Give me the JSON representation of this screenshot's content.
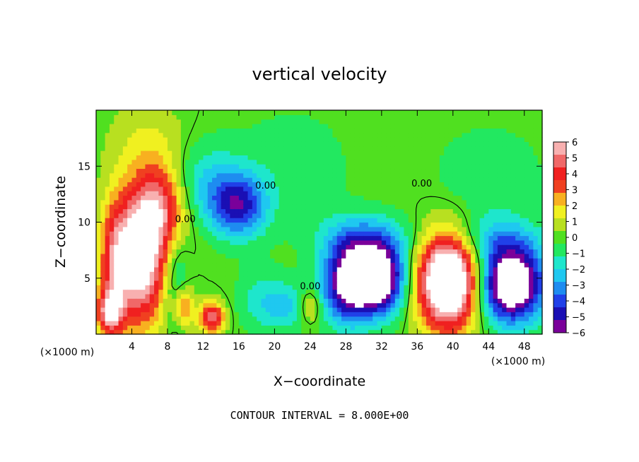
{
  "chart_data": {
    "type": "heatmap",
    "title": "vertical velocity",
    "xlabel": "X−coordinate",
    "ylabel": "Z−coordinate",
    "x_unit_left": "(×1000 m)",
    "x_unit_right": "(×1000 m)",
    "xlim": [
      0,
      50
    ],
    "ylim": [
      0,
      20
    ],
    "x_ticks": [
      4,
      8,
      12,
      16,
      20,
      24,
      28,
      32,
      36,
      40,
      44,
      48
    ],
    "y_ticks": [
      5,
      10,
      15
    ],
    "colorbar": {
      "min": -6,
      "max": 6,
      "ticks": [
        6,
        5,
        4,
        3,
        2,
        1,
        0,
        -1,
        -2,
        -3,
        -4,
        -5,
        -6
      ],
      "tick_labels": [
        "6",
        "5",
        "4",
        "3",
        "2",
        "1",
        "0",
        "−1",
        "−2",
        "−3",
        "−4",
        "−5",
        "−6"
      ],
      "colors": [
        "#7a009a",
        "#1a0fb4",
        "#2040e8",
        "#1e8cf0",
        "#1fc8f0",
        "#1ee6cc",
        "#22e860",
        "#50e020",
        "#b8e020",
        "#f0f020",
        "#f8b020",
        "#f04020",
        "#f02020",
        "#f06868",
        "#f8b0b0"
      ]
    },
    "contour_label": "0.00",
    "footer": "CONTOUR INTERVAL = 8.000E+00",
    "blobs": [
      {
        "x": 5.0,
        "z": 7.0,
        "sx": 2.0,
        "sz": 4.2,
        "a": 7.5
      },
      {
        "x": 7.5,
        "z": 11.5,
        "sx": 2.0,
        "sz": 2.6,
        "a": 4.0
      },
      {
        "x": 2.0,
        "z": 6.5,
        "sx": 1.2,
        "sz": 4.0,
        "a": 3.5
      },
      {
        "x": 1.5,
        "z": 2.0,
        "sx": 1.0,
        "sz": 1.4,
        "a": 5.0
      },
      {
        "x": 9.8,
        "z": 2.5,
        "sx": 0.8,
        "sz": 1.3,
        "a": 3.5
      },
      {
        "x": 13.0,
        "z": 1.5,
        "sx": 1.0,
        "sz": 1.0,
        "a": 5.0
      },
      {
        "x": 24.0,
        "z": 2.5,
        "sx": 0.8,
        "sz": 1.0,
        "a": 2.5
      },
      {
        "x": 16.0,
        "z": 11.5,
        "sx": 2.2,
        "sz": 2.0,
        "a": -4.5
      },
      {
        "x": 12.0,
        "z": 13.5,
        "sx": 3.0,
        "sz": 2.5,
        "a": -2.0
      },
      {
        "x": 28.0,
        "z": 4.5,
        "sx": 2.0,
        "sz": 2.5,
        "a": -5.5
      },
      {
        "x": 31.5,
        "z": 5.0,
        "sx": 2.2,
        "sz": 2.2,
        "a": -8.0
      },
      {
        "x": 30.0,
        "z": 8.5,
        "sx": 3.5,
        "sz": 1.6,
        "a": -2.5
      },
      {
        "x": 39.5,
        "z": 4.8,
        "sx": 2.4,
        "sz": 3.0,
        "a": 10.0
      },
      {
        "x": 46.5,
        "z": 4.5,
        "sx": 2.6,
        "sz": 2.4,
        "a": -8.5
      },
      {
        "x": 44.0,
        "z": 8.5,
        "sx": 4.0,
        "sz": 1.5,
        "a": -2.0
      },
      {
        "x": 9.0,
        "z": 4.5,
        "sx": 1.0,
        "sz": 3.0,
        "a": -2.0
      },
      {
        "x": 18.5,
        "z": 3.0,
        "sx": 2.0,
        "sz": 2.0,
        "a": -1.5
      },
      {
        "x": 21.5,
        "z": 2.5,
        "sx": 1.8,
        "sz": 1.5,
        "a": -1.8
      },
      {
        "x": 6.0,
        "z": 17.0,
        "sx": 3.0,
        "sz": 2.5,
        "a": 1.2
      },
      {
        "x": 44.0,
        "z": 14.0,
        "sx": 4.0,
        "sz": 3.0,
        "a": -1.2
      },
      {
        "x": 22.0,
        "z": 15.0,
        "sx": 5.0,
        "sz": 4.0,
        "a": -0.8
      }
    ]
  }
}
